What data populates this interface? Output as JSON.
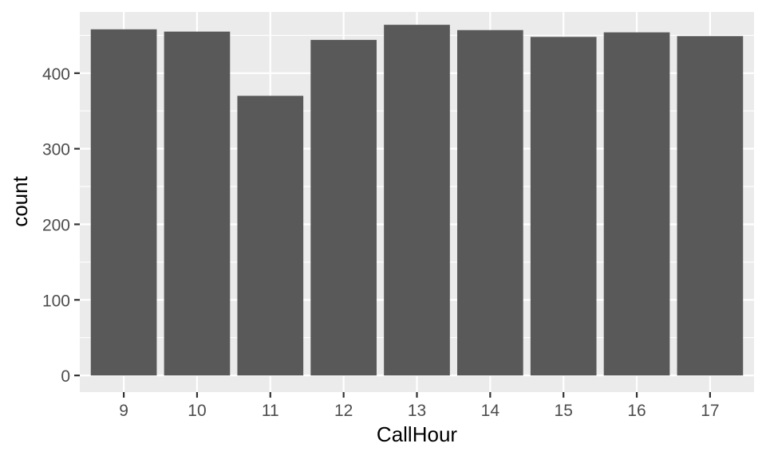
{
  "chart_data": {
    "type": "bar",
    "xlabel": "CallHour",
    "ylabel": "count",
    "categories": [
      "9",
      "10",
      "11",
      "12",
      "13",
      "14",
      "15",
      "16",
      "17"
    ],
    "values": [
      458,
      455,
      370,
      444,
      464,
      457,
      448,
      454,
      449
    ],
    "ylim": [
      -22,
      481
    ],
    "yticks": [
      0,
      100,
      200,
      300,
      400
    ],
    "ytick_labels": [
      "0",
      "100",
      "200",
      "300",
      "400"
    ],
    "grid": true,
    "legend": "none",
    "colors": {
      "bar": "#595959",
      "panel_background": "#ebebeb",
      "grid": "#ffffff",
      "tick_label": "#4d4d4d",
      "axis_title": "#000000",
      "tick_mark": "#333333"
    }
  }
}
